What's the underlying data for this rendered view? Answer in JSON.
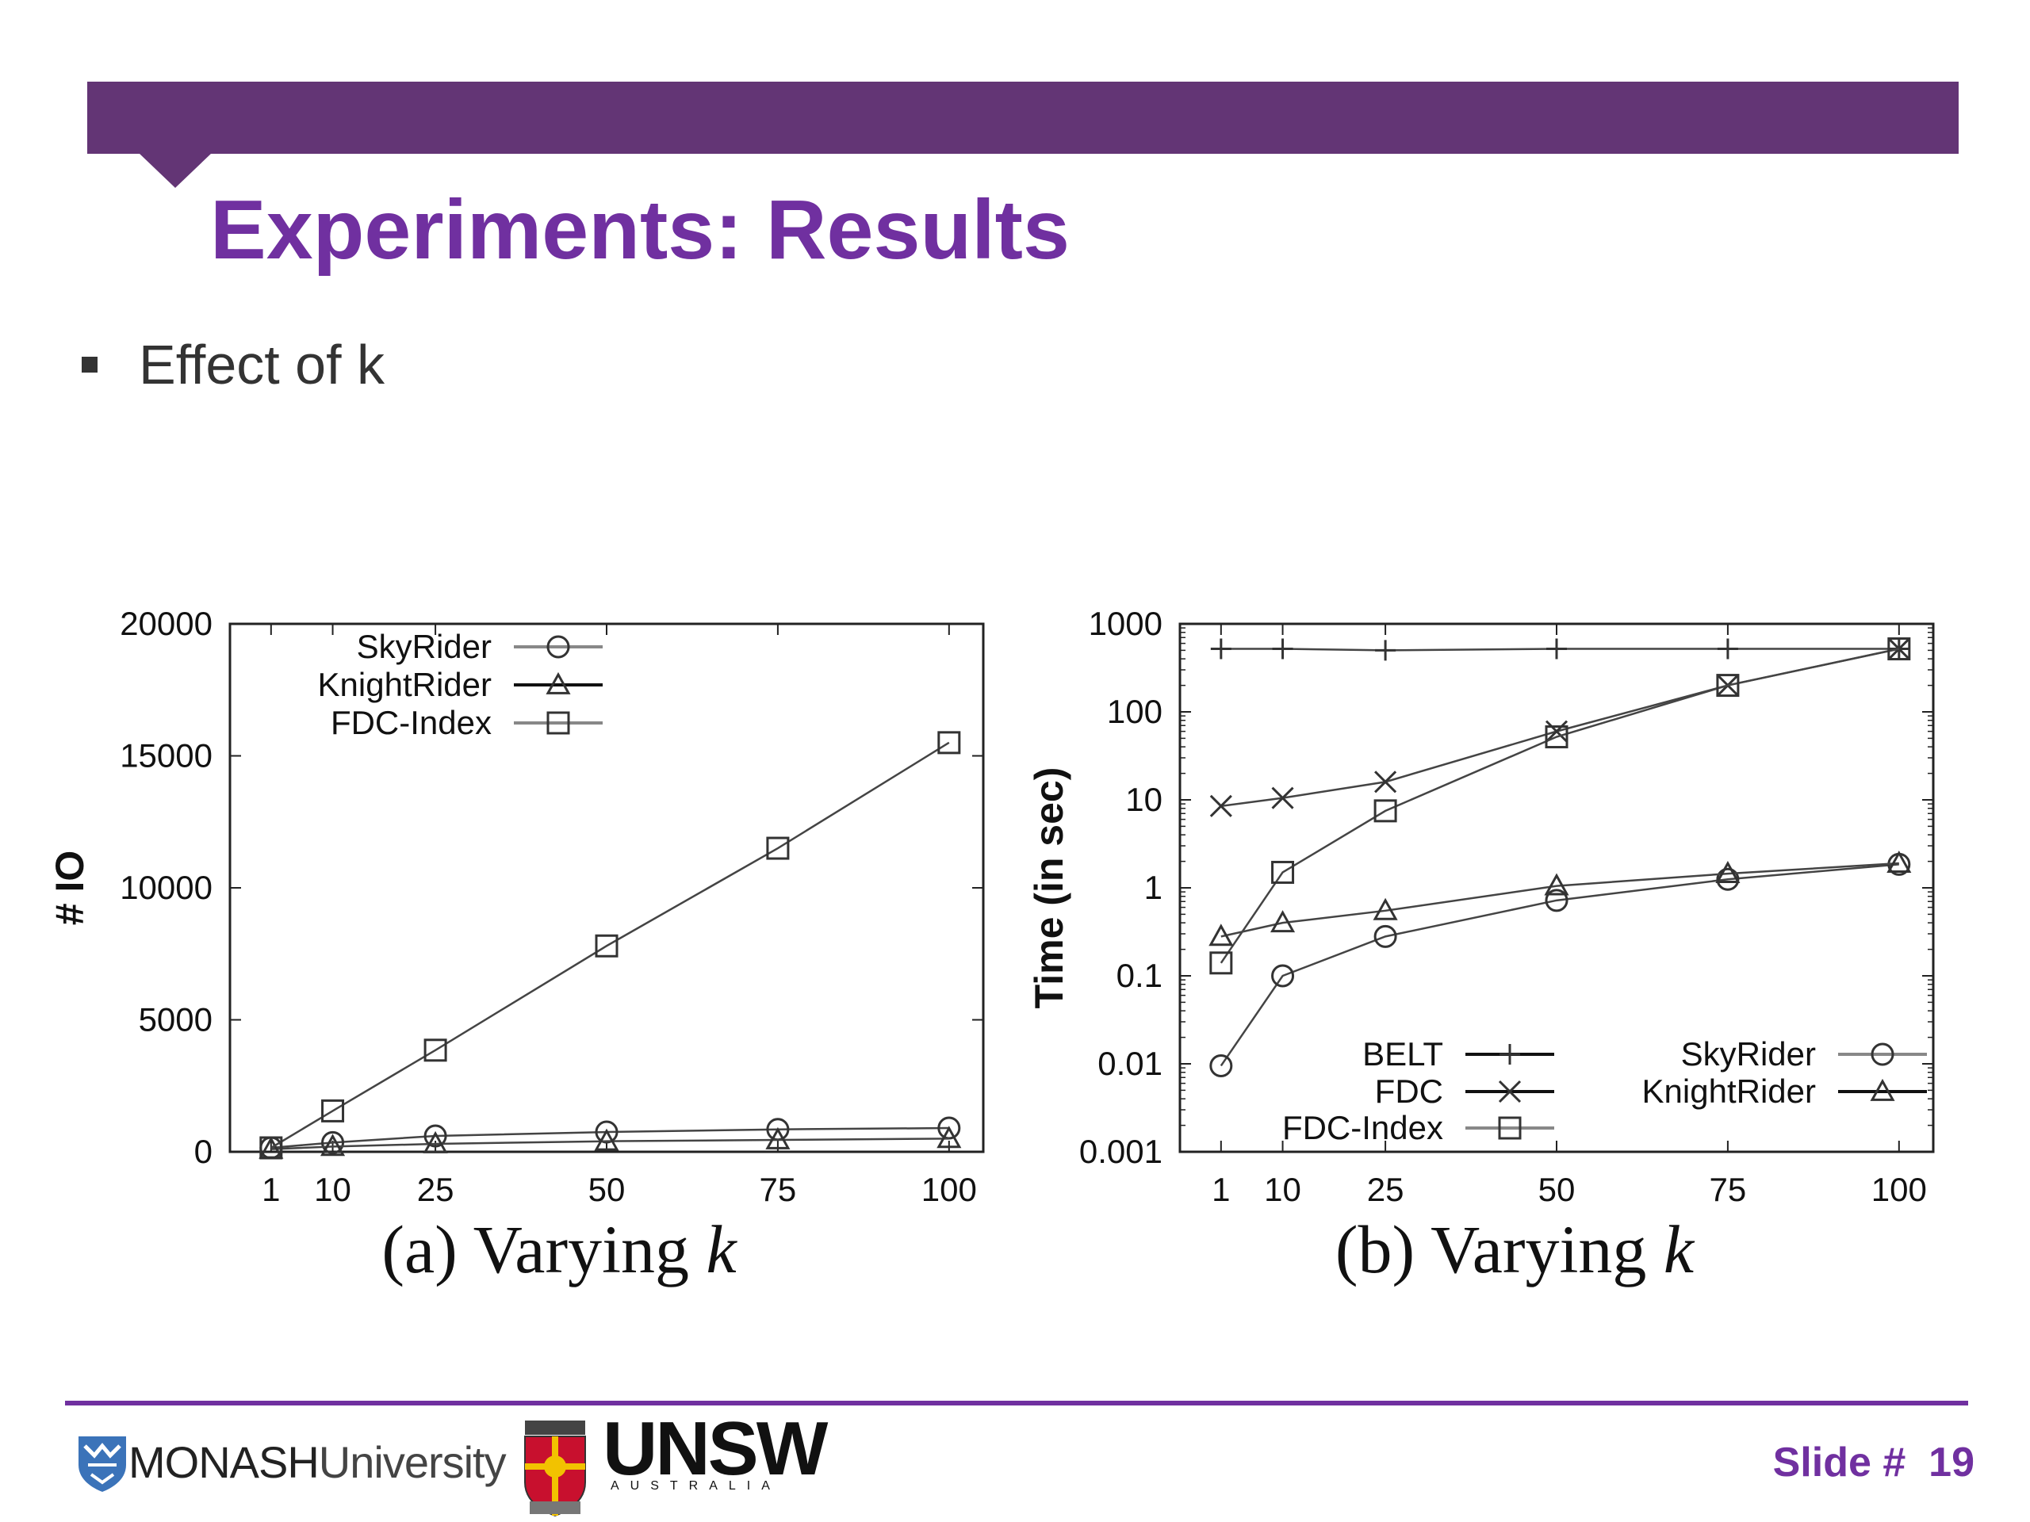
{
  "slide": {
    "title": "Experiments: Results",
    "bullet": "Effect of k",
    "slide_label": "Slide #",
    "slide_number": "19",
    "colors": {
      "bar": "#633575",
      "title": "#7030a0",
      "footer_line": "#7030a0"
    }
  },
  "logos": {
    "monash_name": "MONASH",
    "monash_suffix": "University",
    "unsw_name": "UNSW",
    "unsw_sub": "AUSTRALIA"
  },
  "chart_data": [
    {
      "type": "line",
      "caption": "(a) Varying k",
      "caption_prefix": "(a) Varying",
      "caption_var": "k",
      "xlabel": "",
      "ylabel": "# IO",
      "x": [
        1,
        10,
        25,
        50,
        75,
        100
      ],
      "x_ticks": [
        "1",
        "10",
        "25",
        "50",
        "75",
        "100"
      ],
      "xlim": [
        -5,
        105
      ],
      "ylim": [
        0,
        20000
      ],
      "y_ticks": [
        "0",
        "5000",
        "10000",
        "15000",
        "20000"
      ],
      "y_scale": "linear",
      "legend_position": "top-left",
      "series": [
        {
          "name": "SkyRider",
          "marker": "circle",
          "values": [
            150,
            350,
            600,
            750,
            850,
            900
          ]
        },
        {
          "name": "KnightRider",
          "marker": "triangle",
          "values": [
            100,
            200,
            300,
            400,
            450,
            500
          ]
        },
        {
          "name": "FDC-Index",
          "marker": "square",
          "values": [
            150,
            1550,
            3850,
            7800,
            11500,
            15500
          ]
        }
      ]
    },
    {
      "type": "line",
      "caption": "(b) Varying k",
      "caption_prefix": "(b) Varying",
      "caption_var": "k",
      "xlabel": "",
      "ylabel": "Time (in sec)",
      "x": [
        1,
        10,
        25,
        50,
        75,
        100
      ],
      "x_ticks": [
        "1",
        "10",
        "25",
        "50",
        "75",
        "100"
      ],
      "xlim": [
        -5,
        105
      ],
      "ylim": [
        0.001,
        1000
      ],
      "y_ticks": [
        "0.001",
        "0.01",
        "0.1",
        "1",
        "10",
        "100",
        "1000"
      ],
      "y_scale": "log",
      "legend_position": "bottom",
      "series": [
        {
          "name": "BELT",
          "marker": "plus",
          "values": [
            520,
            520,
            500,
            520,
            520,
            520
          ]
        },
        {
          "name": "FDC",
          "marker": "x",
          "values": [
            8.5,
            10.5,
            16,
            60,
            200,
            520
          ]
        },
        {
          "name": "FDC-Index",
          "marker": "square",
          "values": [
            0.14,
            1.5,
            7.5,
            52,
            200,
            520
          ]
        },
        {
          "name": "SkyRider",
          "marker": "circle",
          "values": [
            0.0095,
            0.1,
            0.28,
            0.72,
            1.25,
            1.85
          ]
        },
        {
          "name": "KnightRider",
          "marker": "triangle",
          "values": [
            0.28,
            0.4,
            0.55,
            1.05,
            1.45,
            1.9
          ]
        }
      ]
    }
  ]
}
